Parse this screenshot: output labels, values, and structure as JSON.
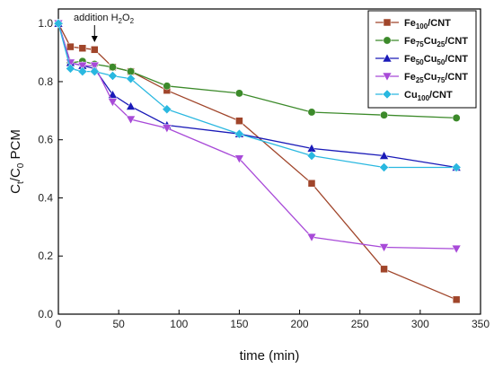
{
  "chart_data": {
    "type": "line",
    "xlabel": "time (min)",
    "ylabel": {
      "main": "C",
      "sub1": "t",
      "mid": "/C",
      "sub2": "0",
      "tail": " PCM"
    },
    "xlim": [
      0,
      350
    ],
    "ylim": [
      0.0,
      1.05
    ],
    "xticks": [
      0,
      50,
      100,
      150,
      200,
      250,
      300,
      350
    ],
    "yticks": [
      0.0,
      0.2,
      0.4,
      0.6,
      0.8,
      1.0
    ],
    "grid": false,
    "legend_position": "top-right",
    "annotation": {
      "text": "addition H",
      "sub": "2",
      "text2": "O",
      "sub2": "2",
      "x": 30
    },
    "series": [
      {
        "legend": {
          "base": "Fe",
          "parts": [
            {
              "sub": "100"
            },
            {
              "text": "/CNT"
            }
          ]
        },
        "color": "#a0452a",
        "marker": "square",
        "x": [
          0,
          10,
          20,
          30,
          45,
          60,
          90,
          150,
          210,
          270,
          330
        ],
        "y": [
          1.0,
          0.92,
          0.915,
          0.91,
          0.85,
          0.835,
          0.77,
          0.665,
          0.45,
          0.155,
          0.05
        ]
      },
      {
        "legend": {
          "base": "Fe",
          "parts": [
            {
              "sub": "75"
            },
            {
              "text": "Cu"
            },
            {
              "sub": "25"
            },
            {
              "text": "/CNT"
            }
          ]
        },
        "color": "#3c8a2a",
        "marker": "circle",
        "x": [
          0,
          10,
          20,
          30,
          45,
          60,
          90,
          150,
          210,
          270,
          330
        ],
        "y": [
          1.0,
          0.865,
          0.87,
          0.86,
          0.85,
          0.835,
          0.785,
          0.76,
          0.695,
          0.685,
          0.675
        ]
      },
      {
        "legend": {
          "base": "Fe",
          "parts": [
            {
              "sub": "50"
            },
            {
              "text": "Cu"
            },
            {
              "sub": "50"
            },
            {
              "text": "/CNT"
            }
          ]
        },
        "color": "#1a1ab8",
        "marker": "triangle-up",
        "x": [
          0,
          10,
          20,
          30,
          45,
          60,
          90,
          150,
          210,
          270,
          330
        ],
        "y": [
          1.0,
          0.865,
          0.855,
          0.845,
          0.755,
          0.715,
          0.65,
          0.62,
          0.57,
          0.545,
          0.505
        ]
      },
      {
        "legend": {
          "base": "Fe",
          "parts": [
            {
              "sub": "25"
            },
            {
              "text": "Cu"
            },
            {
              "sub": "75"
            },
            {
              "text": "/CNT"
            }
          ]
        },
        "color": "#a84ad8",
        "marker": "triangle-down",
        "x": [
          0,
          10,
          20,
          30,
          45,
          60,
          90,
          150,
          210,
          270,
          330
        ],
        "y": [
          1.0,
          0.865,
          0.855,
          0.855,
          0.73,
          0.67,
          0.64,
          0.535,
          0.265,
          0.23,
          0.225
        ]
      },
      {
        "legend": {
          "base": "Cu",
          "parts": [
            {
              "sub": "100"
            },
            {
              "text": "/CNT"
            }
          ]
        },
        "color": "#2ab8e0",
        "marker": "diamond",
        "x": [
          0,
          10,
          20,
          30,
          45,
          60,
          90,
          150,
          210,
          270,
          330
        ],
        "y": [
          1.0,
          0.845,
          0.835,
          0.835,
          0.82,
          0.81,
          0.705,
          0.62,
          0.545,
          0.505,
          0.505
        ]
      }
    ]
  }
}
